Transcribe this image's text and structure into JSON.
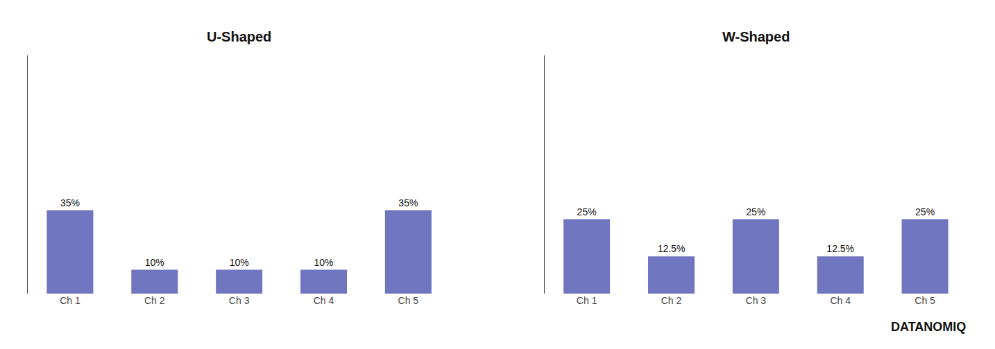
{
  "chart_data": [
    {
      "type": "bar",
      "title": "U-Shaped",
      "categories": [
        "Ch 1",
        "Ch 2",
        "Ch 3",
        "Ch 4",
        "Ch 5"
      ],
      "values": [
        35,
        10,
        10,
        10,
        35
      ],
      "value_labels": [
        "35%",
        "10%",
        "10%",
        "10%",
        "35%"
      ],
      "data_labels": true,
      "color": "#7075bf",
      "ylim": [
        0,
        100
      ],
      "grid": false,
      "tick_labels": "x"
    },
    {
      "type": "bar",
      "title": "W-Shaped",
      "categories": [
        "Ch 1",
        "Ch 2",
        "Ch 3",
        "Ch 4",
        "Ch 5"
      ],
      "values": [
        25,
        12.5,
        25,
        12.5,
        25
      ],
      "value_labels": [
        "25%",
        "12.5%",
        "25%",
        "12.5%",
        "25%"
      ],
      "data_labels": true,
      "color": "#7075bf",
      "ylim": [
        0,
        80
      ],
      "grid": false,
      "tick_labels": "x",
      "annotations": [
        "DATANOMIQ"
      ]
    }
  ]
}
